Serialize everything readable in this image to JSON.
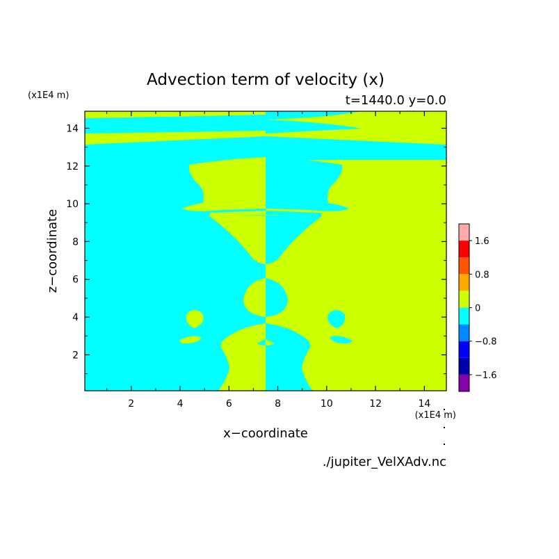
{
  "chart_data": {
    "type": "heatmap",
    "title": "Advection term of velocity (x)",
    "subtitle": "t=1440.0 y=0.0",
    "xlabel": "x−coordinate",
    "ylabel": "z−coordinate",
    "x_unit": "(x1E4 m)",
    "y_unit": "(x1E4 m)",
    "xlim": [
      0.1,
      14.9
    ],
    "ylim": [
      0.1,
      14.9
    ],
    "x_ticks": [
      "2",
      "4",
      "6",
      "8",
      "10",
      "12",
      "14"
    ],
    "y_ticks": [
      "2",
      "4",
      "6",
      "8",
      "10",
      "12",
      "14"
    ],
    "x_tick_values": [
      2,
      4,
      6,
      8,
      10,
      12,
      14
    ],
    "y_tick_values": [
      2,
      4,
      6,
      8,
      10,
      12,
      14
    ],
    "colors": {
      "negative_small": "#00ffff",
      "positive_small": "#ccff00"
    },
    "colorbar": {
      "labels": [
        "1.6",
        "0.8",
        "0",
        "−0.8",
        "−1.6"
      ],
      "label_values": [
        1.6,
        0.8,
        0,
        -0.8,
        -1.6
      ],
      "levels": [
        2.0,
        1.6,
        1.2,
        0.8,
        0.4,
        0.0,
        -0.4,
        -0.8,
        -1.2,
        -1.6,
        -2.0
      ],
      "colors": [
        "#ffaaaa",
        "#ff0000",
        "#ff5500",
        "#ffaa00",
        "#ccff00",
        "#00ffff",
        "#0088ff",
        "#0000ff",
        "#0000aa",
        "#8800aa"
      ]
    },
    "regions": [
      {
        "value_sign": "positive",
        "x_range": [
          7.5,
          14.9
        ],
        "z_range": [
          0.1,
          14.9
        ]
      },
      {
        "value_sign": "negative",
        "x_range": [
          0.1,
          7.5
        ],
        "z_range": [
          0.1,
          14.9
        ]
      }
    ],
    "source_file": "./jupiter_VelXAdv.nc"
  }
}
